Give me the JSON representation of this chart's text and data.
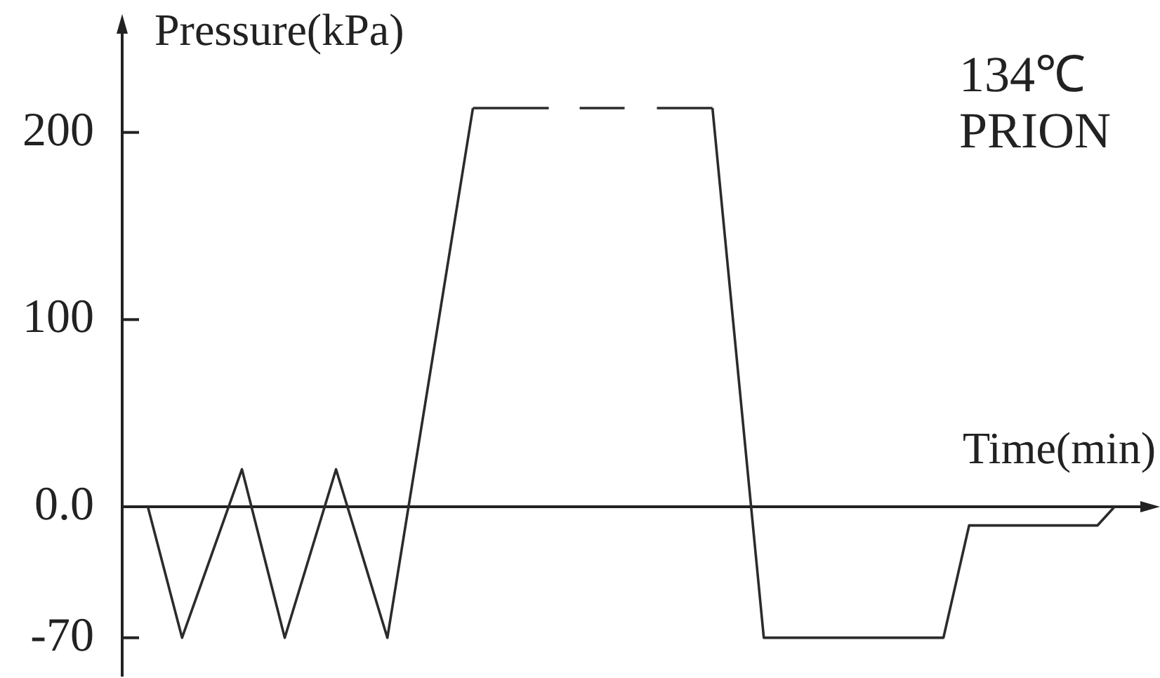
{
  "chart_data": {
    "type": "line",
    "annotations": [
      "134℃\nPRION"
    ],
    "xlabel": "Time(min)",
    "ylabel": "Pressure(kPa)",
    "categories": [
      null,
      null,
      null,
      null,
      null,
      null,
      null,
      null,
      null,
      null,
      null,
      null,
      null,
      null,
      null,
      null,
      null,
      null,
      null,
      null,
      null,
      null,
      null,
      null,
      null,
      null,
      null,
      null,
      null,
      null,
      null,
      null,
      null,
      null,
      null,
      null,
      null,
      null,
      null,
      null,
      null,
      null,
      null,
      null,
      null,
      null,
      null,
      null,
      null,
      null,
      null,
      null,
      null,
      null,
      null,
      null,
      null,
      null,
      null,
      null,
      null,
      null,
      null,
      null,
      null,
      null,
      null,
      null,
      null,
      null,
      null,
      null,
      null,
      null,
      null,
      null,
      null,
      null,
      null,
      null,
      null,
      null,
      null,
      null,
      null,
      null,
      null,
      null,
      null,
      null,
      null,
      null,
      null,
      null,
      null,
      null,
      null,
      null,
      null,
      null,
      null,
      null,
      null,
      null,
      null,
      null,
      null,
      null,
      null,
      null,
      null,
      null,
      null,
      null,
      null,
      null,
      null,
      null,
      null,
      null,
      null
    ],
    "series": [
      {
        "color": "#2b2b2b",
        "values": [
          null,
          null,
          null,
          0,
          null,
          null,
          null,
          -70,
          null,
          null,
          null,
          null,
          null,
          null,
          20,
          null,
          null,
          null,
          null,
          -70,
          null,
          null,
          null,
          null,
          null,
          20,
          null,
          null,
          null,
          null,
          null,
          -70,
          null,
          null,
          null,
          null,
          null,
          null,
          null,
          null,
          null,
          213,
          null,
          null,
          null,
          null,
          null,
          null,
          null,
          null,
          null,
          null,
          null,
          null,
          null,
          null,
          null,
          null,
          null,
          null,
          null,
          null,
          null,
          null,
          null,
          null,
          null,
          null,
          null,
          null,
          null,
          null,
          null,
          null,
          null,
          null,
          null,
          null,
          null,
          null,
          null,
          null,
          null,
          null,
          null,
          null,
          null,
          null,
          null,
          null,
          null,
          null,
          null,
          null,
          null,
          null,
          null,
          null,
          null,
          null,
          null,
          null,
          null,
          null,
          null,
          null,
          null,
          null,
          null,
          null,
          null,
          null,
          null,
          null,
          null,
          null,
          null,
          null,
          null,
          null,
          null
        ]
      },
      {
        "color": "#2b2b2b",
        "line_style": "dashed",
        "values": [
          null,
          null,
          null,
          null,
          null,
          null,
          null,
          null,
          null,
          null,
          null,
          null,
          null,
          null,
          null,
          null,
          null,
          null,
          null,
          null,
          null,
          null,
          null,
          null,
          null,
          null,
          null,
          null,
          null,
          null,
          null,
          null,
          null,
          null,
          null,
          null,
          null,
          null,
          null,
          null,
          null,
          213,
          null,
          null,
          null,
          null,
          null,
          null,
          null,
          null,
          null,
          null,
          null,
          null,
          null,
          null,
          null,
          null,
          null,
          null,
          null,
          null,
          null,
          null,
          null,
          null,
          null,
          null,
          null,
          213,
          null,
          null,
          null,
          null,
          null,
          null,
          null,
          null,
          null,
          null,
          null,
          null,
          null,
          null,
          null,
          null,
          null,
          null,
          null,
          null,
          null,
          null,
          null,
          null,
          null,
          null,
          null,
          null,
          null,
          null,
          null,
          null,
          null,
          null,
          null,
          null,
          null,
          null,
          null,
          null,
          null,
          null,
          null,
          null,
          null,
          null,
          null,
          null,
          null,
          null,
          null
        ]
      },
      {
        "color": "#2b2b2b",
        "values": [
          null,
          null,
          null,
          null,
          null,
          null,
          null,
          null,
          null,
          null,
          null,
          null,
          null,
          null,
          null,
          null,
          null,
          null,
          null,
          null,
          null,
          null,
          null,
          null,
          null,
          null,
          null,
          null,
          null,
          null,
          null,
          null,
          null,
          null,
          null,
          null,
          null,
          null,
          null,
          null,
          null,
          null,
          null,
          null,
          null,
          null,
          null,
          null,
          null,
          null,
          null,
          null,
          null,
          null,
          null,
          null,
          null,
          null,
          null,
          null,
          null,
          null,
          null,
          null,
          null,
          null,
          null,
          null,
          null,
          213,
          null,
          null,
          null,
          null,
          null,
          -70,
          null,
          null,
          null,
          null,
          null,
          null,
          null,
          null,
          null,
          null,
          null,
          null,
          null,
          null,
          null,
          null,
          null,
          null,
          null,
          null,
          -70,
          null,
          null,
          -10,
          null,
          null,
          null,
          null,
          null,
          null,
          null,
          null,
          null,
          null,
          null,
          null,
          null,
          null,
          -10,
          null,
          0,
          null,
          null,
          null,
          null
        ]
      }
    ],
    "ylim": [
      -90,
      255
    ],
    "yticks": [
      200,
      100,
      {
        "value": 0,
        "label": "0.0"
      },
      -70
    ],
    "tick_labels": "y",
    "marker": "none",
    "line_style": "solid"
  }
}
